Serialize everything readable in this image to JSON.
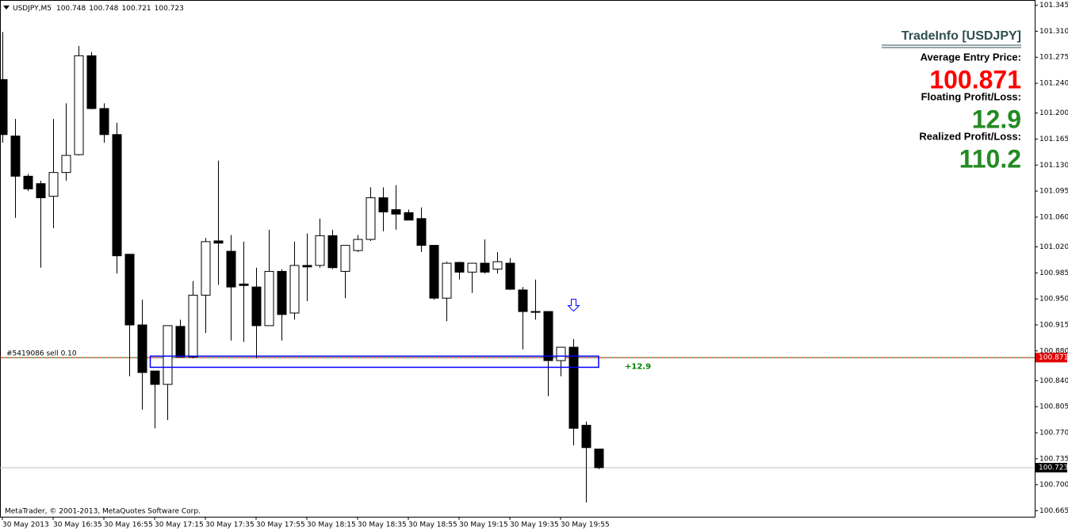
{
  "chart_data": {
    "type": "candlestick",
    "symbol": "USDJPY,M5",
    "categories": [
      "30 May 2013",
      null,
      null,
      null,
      "30 May 16:35",
      null,
      null,
      null,
      "30 May 16:55",
      null,
      null,
      null,
      "30 May 17:15",
      null,
      null,
      null,
      "30 May 17:35",
      null,
      null,
      null,
      "30 May 17:55",
      null,
      null,
      null,
      "30 May 18:15",
      null,
      null,
      null,
      "30 May 18:35",
      null,
      null,
      null,
      "30 May 18:55",
      null,
      null,
      null,
      "30 May 19:15",
      null,
      null,
      null,
      "30 May 19:35",
      null,
      null,
      null,
      "30 May 19:55",
      null,
      null,
      null
    ],
    "open": [
      101.245,
      101.169,
      101.115,
      101.105,
      101.088,
      101.12,
      101.144,
      101.277,
      101.206,
      101.171,
      101.01,
      100.915,
      100.853,
      100.835,
      100.913,
      100.872,
      100.955,
      101.028,
      101.014,
      100.97,
      100.966,
      100.914,
      100.987,
      100.931,
      100.995,
      100.995,
      101.035,
      100.987,
      101.015,
      101.03,
      101.086,
      101.07,
      101.066,
      101.058,
      101.022,
      100.951,
      100.999,
      100.986,
      100.998,
      100.99,
      100.998,
      100.962,
      100.933,
      100.933,
      100.867,
      100.885,
      100.78,
      100.748
    ],
    "high": [
      101.309,
      101.192,
      101.118,
      101.109,
      101.192,
      101.213,
      101.29,
      101.282,
      101.213,
      101.187,
      101.01,
      100.949,
      100.853,
      100.914,
      100.922,
      100.974,
      101.032,
      101.136,
      101.036,
      101.027,
      100.992,
      101.043,
      100.99,
      101.027,
      101.038,
      101.058,
      101.043,
      101.022,
      101.036,
      101.1,
      101.1,
      101.103,
      101.07,
      101.073,
      101.022,
      101.0,
      101.0,
      100.998,
      101.03,
      101.013,
      101.005,
      100.966,
      100.976,
      100.933,
      100.885,
      100.896,
      100.785,
      100.748
    ],
    "low": [
      101.16,
      101.059,
      101.095,
      100.992,
      101.045,
      101.109,
      101.143,
      101.205,
      101.16,
      100.984,
      100.846,
      100.801,
      100.776,
      100.787,
      100.872,
      100.87,
      100.904,
      100.969,
      100.894,
      100.892,
      100.87,
      100.914,
      100.894,
      100.922,
      100.947,
      100.992,
      100.99,
      100.951,
      101.013,
      101.028,
      101.041,
      101.043,
      101.056,
      101.013,
      100.949,
      100.92,
      100.976,
      100.958,
      100.984,
      100.984,
      100.962,
      100.882,
      100.922,
      100.819,
      100.846,
      100.753,
      100.676,
      100.721
    ],
    "close": [
      101.171,
      101.115,
      101.098,
      101.086,
      101.12,
      101.143,
      101.277,
      101.206,
      101.171,
      101.008,
      100.915,
      100.851,
      100.835,
      100.914,
      100.872,
      100.955,
      101.027,
      101.025,
      100.966,
      100.968,
      100.914,
      100.987,
      100.929,
      100.995,
      100.993,
      101.035,
      100.992,
      101.022,
      101.03,
      101.086,
      101.067,
      101.064,
      101.056,
      101.022,
      100.951,
      100.998,
      100.986,
      100.998,
      100.986,
      101.0,
      100.963,
      100.933,
      100.932,
      100.867,
      100.885,
      100.776,
      100.75,
      100.723
    ],
    "ylim": [
      100.657,
      101.352
    ],
    "yticks": [
      101.345,
      {
        "value": 101.31,
        "label": "101.310"
      },
      101.275,
      {
        "value": 101.24,
        "label": "101.240"
      },
      {
        "value": 101.2,
        "label": "101.200"
      },
      101.165,
      {
        "value": 101.13,
        "label": "101.130"
      },
      101.095,
      {
        "value": 101.06,
        "label": "101.060"
      },
      {
        "value": 101.02,
        "label": "101.020"
      },
      100.985,
      {
        "value": 100.95,
        "label": "100.950"
      },
      100.915,
      {
        "value": 100.88,
        "label": "100.880"
      },
      {
        "value": 100.84,
        "label": "100.840"
      },
      100.805,
      {
        "value": 100.77,
        "label": "100.770"
      },
      100.735,
      {
        "value": 100.7,
        "label": "100.700"
      },
      100.665
    ],
    "grid": false,
    "bull_color": "#ffffff",
    "bear_color": "#000000",
    "order_line": {
      "label": "#5419086 sell 0.10",
      "price": 100.871,
      "profit_label": "+12.9"
    },
    "rectangle": {
      "start": 12,
      "end": 47,
      "top": 100.873,
      "bottom": 100.858,
      "color": "#0000ff"
    },
    "sell_arrow": {
      "index": 45,
      "price": 100.941,
      "color": "#0000ff"
    }
  },
  "info_panel": {
    "title": "TradeInfo [USDJPY]",
    "rows": [
      {
        "label": "Average Entry Price:",
        "value": 100.871,
        "color": "#ff0000"
      },
      {
        "label": "Floating Profit/Loss:",
        "value": 12.9,
        "color": "#228b22"
      },
      {
        "label": "Realized Profit/Loss:",
        "value": 110.2,
        "color": "#228b22"
      }
    ]
  },
  "footer": "MetaTrader, © 2001-2013, MetaQuotes Software Corp."
}
